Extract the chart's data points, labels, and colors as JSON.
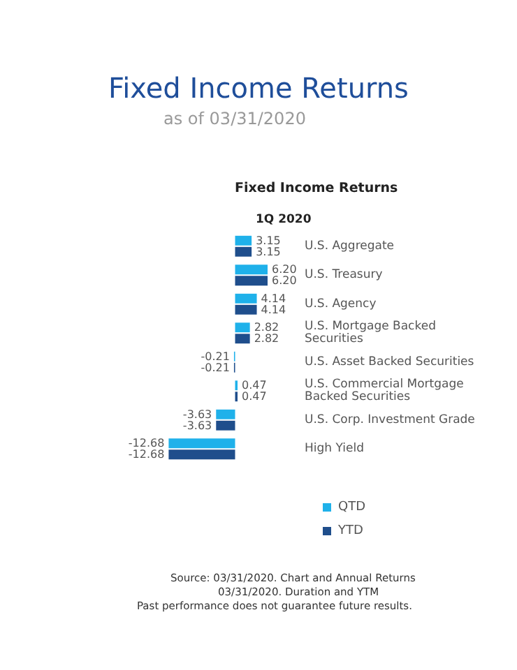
{
  "chart_data": {
    "type": "bar",
    "orientation": "horizontal",
    "title": "Fixed Income Returns",
    "subtitle": "as of 03/31/2020",
    "categories": [
      "U.S. Aggregate",
      "U.S. Treasury",
      "U.S. Agency",
      "U.S. Mortgage Backed Securities",
      "U.S. Asset Backed Securities",
      "U.S. Commercial Mortgage Backed Securities",
      "U.S. Corp. Investment Grade",
      "High Yield"
    ],
    "series": [
      {
        "name": "QTD",
        "color": "#1fb1ea",
        "values": [
          3.15,
          6.2,
          4.14,
          2.82,
          -0.21,
          0.47,
          -3.63,
          -12.68
        ],
        "value_labels": [
          "3.15",
          "6.20",
          "4.14",
          "2.82",
          "-0.21",
          "0.47",
          "-3.63",
          "-12.68"
        ]
      },
      {
        "name": "YTD",
        "color": "#1f4e8c",
        "values": [
          3.15,
          6.2,
          4.14,
          2.82,
          -0.21,
          0.47,
          -3.63,
          -12.68
        ],
        "value_labels": [
          "3.15",
          "6.20",
          "4.14",
          "2.82",
          "-0.21",
          "0.47",
          "-3.63",
          "-12.68"
        ]
      }
    ],
    "legend": "bottom",
    "annotations": [
      "Fixed Income Returns",
      "1Q 2020",
      "Source: 03/31/2020. Chart and Annual Returns",
      "03/31/2020. Duration and YTM",
      "Past performance does not guarantee future results."
    ]
  }
}
